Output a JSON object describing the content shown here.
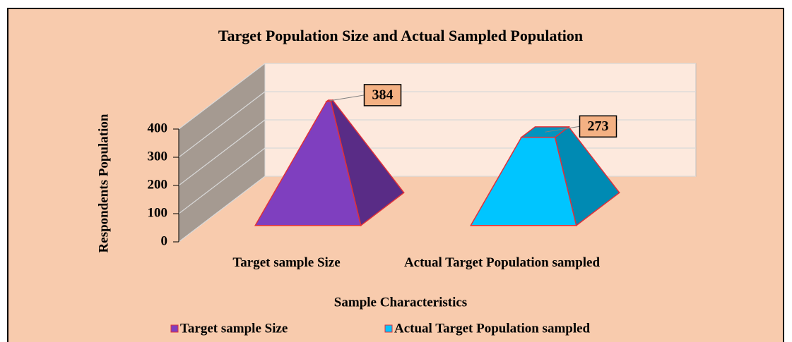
{
  "chart_data": {
    "type": "pyramid3d",
    "title": "Target Population Size and Actual Sampled Population",
    "x_label": "Sample Characteristics",
    "y_label": "Respondents Population",
    "categories": [
      "Target sample Size",
      "Actual Target Population sampled"
    ],
    "values": [
      384,
      273
    ],
    "colors": [
      "#7f3fbf",
      "#00c5ff"
    ],
    "ylim": [
      0,
      400
    ],
    "yticks": [
      0,
      100,
      200,
      300,
      400
    ],
    "grid": true,
    "legend": "bottom"
  }
}
